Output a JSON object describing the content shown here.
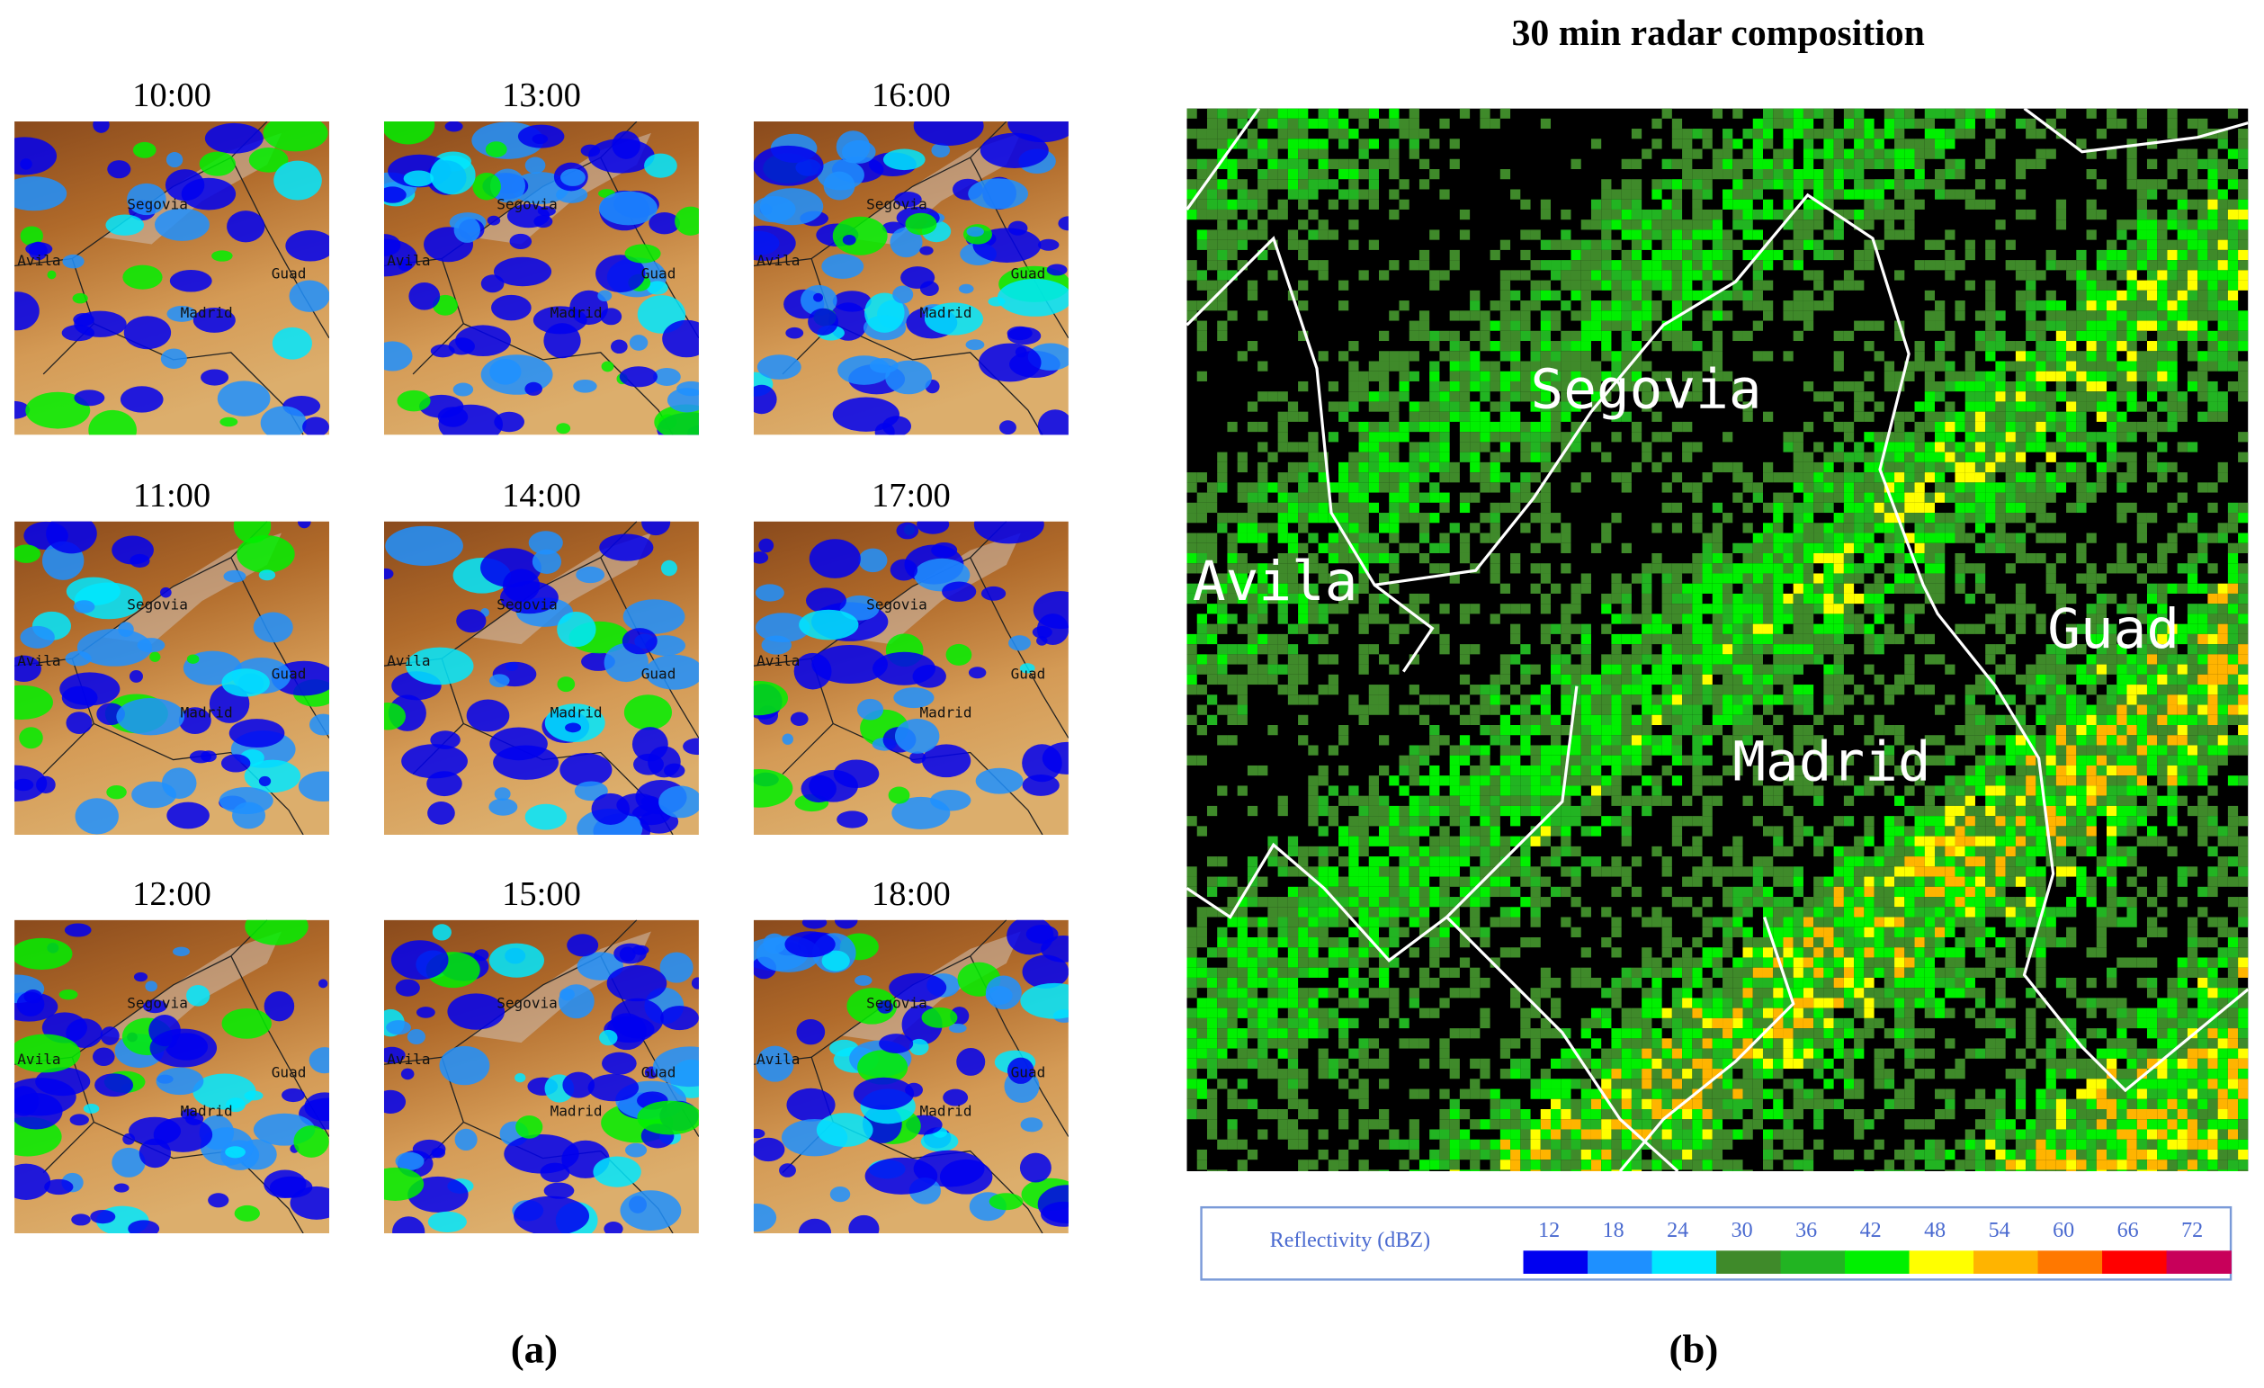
{
  "figure": {
    "panel_a": {
      "times": [
        "10:00",
        "11:00",
        "12:00",
        "13:00",
        "14:00",
        "15:00",
        "16:00",
        "17:00",
        "18:00"
      ],
      "caption": "(a)"
    },
    "panel_b": {
      "title": "30 min radar composition",
      "caption": "(b)"
    },
    "cities": {
      "segovia": "Segovia",
      "madrid": "Madrid",
      "guadalajara": "Guad",
      "avila": "Avila"
    },
    "legend": {
      "label": "Reflectivity (dBZ)",
      "levels": [
        {
          "value": 12,
          "color": "#0000f0"
        },
        {
          "value": 18,
          "color": "#1e90ff"
        },
        {
          "value": 24,
          "color": "#00e8ff"
        },
        {
          "value": 30,
          "color": "#3f8a2a"
        },
        {
          "value": 36,
          "color": "#22b422"
        },
        {
          "value": 42,
          "color": "#00f000"
        },
        {
          "value": 48,
          "color": "#ffff00"
        },
        {
          "value": 54,
          "color": "#ffb400"
        },
        {
          "value": 60,
          "color": "#ff7800"
        },
        {
          "value": 66,
          "color": "#ff0000"
        },
        {
          "value": 72,
          "color": "#c8005a"
        }
      ]
    }
  }
}
